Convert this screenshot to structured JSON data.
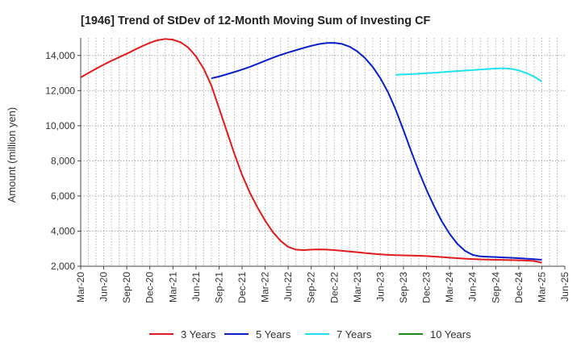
{
  "chart_data": {
    "type": "line",
    "title": "[1946]  Trend of StDev of 12-Month Moving Sum of Investing CF",
    "xlabel": "",
    "ylabel": "Amount (million yen)",
    "ylim": [
      2000,
      15000
    ],
    "yticks": [
      2000,
      4000,
      6000,
      8000,
      10000,
      12000,
      14000
    ],
    "ytick_labels": [
      "2,000",
      "4,000",
      "6,000",
      "8,000",
      "10,000",
      "12,000",
      "14,000"
    ],
    "x_ticks": [
      "Mar-20",
      "Jun-20",
      "Sep-20",
      "Dec-20",
      "Mar-21",
      "Jun-21",
      "Sep-21",
      "Dec-21",
      "Mar-22",
      "Jun-22",
      "Sep-22",
      "Dec-22",
      "Mar-23",
      "Jun-23",
      "Sep-23",
      "Dec-23",
      "Mar-24",
      "Jun-24",
      "Sep-24",
      "Dec-24",
      "Mar-25",
      "Jun-25"
    ],
    "grid": true,
    "legend_position": "bottom",
    "series": [
      {
        "name": "3 Years",
        "color": "#e31a1c",
        "points": [
          [
            "Mar-20",
            12750
          ],
          [
            "Apr-20",
            13000
          ],
          [
            "May-20",
            13250
          ],
          [
            "Jun-20",
            13480
          ],
          [
            "Jul-20",
            13700
          ],
          [
            "Aug-20",
            13900
          ],
          [
            "Sep-20",
            14100
          ],
          [
            "Oct-20",
            14320
          ],
          [
            "Nov-20",
            14530
          ],
          [
            "Dec-20",
            14720
          ],
          [
            "Jan-21",
            14870
          ],
          [
            "Feb-21",
            14940
          ],
          [
            "Mar-21",
            14900
          ],
          [
            "Apr-21",
            14750
          ],
          [
            "May-21",
            14450
          ],
          [
            "Jun-21",
            13950
          ],
          [
            "Jul-21",
            13250
          ],
          [
            "Aug-21",
            12300
          ],
          [
            "Sep-21",
            11000
          ],
          [
            "Oct-21",
            9700
          ],
          [
            "Nov-21",
            8400
          ],
          [
            "Dec-21",
            7200
          ],
          [
            "Jan-22",
            6200
          ],
          [
            "Feb-22",
            5350
          ],
          [
            "Mar-22",
            4600
          ],
          [
            "Apr-22",
            3950
          ],
          [
            "May-22",
            3450
          ],
          [
            "Jun-22",
            3100
          ],
          [
            "Jul-22",
            2950
          ],
          [
            "Aug-22",
            2920
          ],
          [
            "Sep-22",
            2950
          ],
          [
            "Oct-22",
            2960
          ],
          [
            "Nov-22",
            2950
          ],
          [
            "Dec-22",
            2920
          ],
          [
            "Jan-23",
            2880
          ],
          [
            "Feb-23",
            2840
          ],
          [
            "Mar-23",
            2800
          ],
          [
            "Apr-23",
            2750
          ],
          [
            "May-23",
            2710
          ],
          [
            "Jun-23",
            2680
          ],
          [
            "Jul-23",
            2650
          ],
          [
            "Aug-23",
            2630
          ],
          [
            "Sep-23",
            2620
          ],
          [
            "Oct-23",
            2610
          ],
          [
            "Nov-23",
            2600
          ],
          [
            "Dec-23",
            2580
          ],
          [
            "Jan-24",
            2550
          ],
          [
            "Feb-24",
            2520
          ],
          [
            "Mar-24",
            2490
          ],
          [
            "Apr-24",
            2460
          ],
          [
            "May-24",
            2430
          ],
          [
            "Jun-24",
            2410
          ],
          [
            "Jul-24",
            2390
          ],
          [
            "Aug-24",
            2380
          ],
          [
            "Sep-24",
            2370
          ],
          [
            "Oct-24",
            2360
          ],
          [
            "Nov-24",
            2350
          ],
          [
            "Dec-24",
            2340
          ],
          [
            "Jan-25",
            2330
          ],
          [
            "Feb-25",
            2300
          ],
          [
            "Mar-25",
            2200
          ]
        ]
      },
      {
        "name": "5 Years",
        "color": "#0a1fcc",
        "points": [
          [
            "Aug-21",
            12700
          ],
          [
            "Sep-21",
            12800
          ],
          [
            "Oct-21",
            12930
          ],
          [
            "Nov-21",
            13060
          ],
          [
            "Dec-21",
            13200
          ],
          [
            "Jan-22",
            13350
          ],
          [
            "Feb-22",
            13520
          ],
          [
            "Mar-22",
            13700
          ],
          [
            "Apr-22",
            13870
          ],
          [
            "May-22",
            14030
          ],
          [
            "Jun-22",
            14170
          ],
          [
            "Jul-22",
            14300
          ],
          [
            "Aug-22",
            14430
          ],
          [
            "Sep-22",
            14550
          ],
          [
            "Oct-22",
            14650
          ],
          [
            "Nov-22",
            14710
          ],
          [
            "Dec-22",
            14720
          ],
          [
            "Jan-23",
            14660
          ],
          [
            "Feb-23",
            14500
          ],
          [
            "Mar-23",
            14230
          ],
          [
            "Apr-23",
            13850
          ],
          [
            "May-23",
            13350
          ],
          [
            "Jun-23",
            12700
          ],
          [
            "Jul-23",
            11900
          ],
          [
            "Aug-23",
            10900
          ],
          [
            "Sep-23",
            9750
          ],
          [
            "Oct-23",
            8550
          ],
          [
            "Nov-23",
            7400
          ],
          [
            "Dec-23",
            6350
          ],
          [
            "Jan-24",
            5400
          ],
          [
            "Feb-24",
            4550
          ],
          [
            "Mar-24",
            3850
          ],
          [
            "Apr-24",
            3280
          ],
          [
            "May-24",
            2880
          ],
          [
            "Jun-24",
            2650
          ],
          [
            "Jul-24",
            2560
          ],
          [
            "Aug-24",
            2540
          ],
          [
            "Sep-24",
            2520
          ],
          [
            "Oct-24",
            2500
          ],
          [
            "Nov-24",
            2480
          ],
          [
            "Dec-24",
            2460
          ],
          [
            "Jan-25",
            2430
          ],
          [
            "Feb-25",
            2400
          ],
          [
            "Mar-25",
            2370
          ]
        ]
      },
      {
        "name": "7 Years",
        "color": "#1ee3f0",
        "points": [
          [
            "Aug-23",
            12900
          ],
          [
            "Sep-23",
            12920
          ],
          [
            "Oct-23",
            12940
          ],
          [
            "Nov-23",
            12960
          ],
          [
            "Dec-23",
            12990
          ],
          [
            "Jan-24",
            13020
          ],
          [
            "Feb-24",
            13050
          ],
          [
            "Mar-24",
            13080
          ],
          [
            "Apr-24",
            13110
          ],
          [
            "May-24",
            13140
          ],
          [
            "Jun-24",
            13170
          ],
          [
            "Jul-24",
            13200
          ],
          [
            "Aug-24",
            13230
          ],
          [
            "Sep-24",
            13260
          ],
          [
            "Oct-24",
            13270
          ],
          [
            "Nov-24",
            13240
          ],
          [
            "Dec-24",
            13150
          ],
          [
            "Jan-25",
            13000
          ],
          [
            "Feb-25",
            12800
          ],
          [
            "Mar-25",
            12520
          ]
        ]
      },
      {
        "name": "10 Years",
        "color": "#1a8a1a",
        "points": []
      }
    ]
  }
}
